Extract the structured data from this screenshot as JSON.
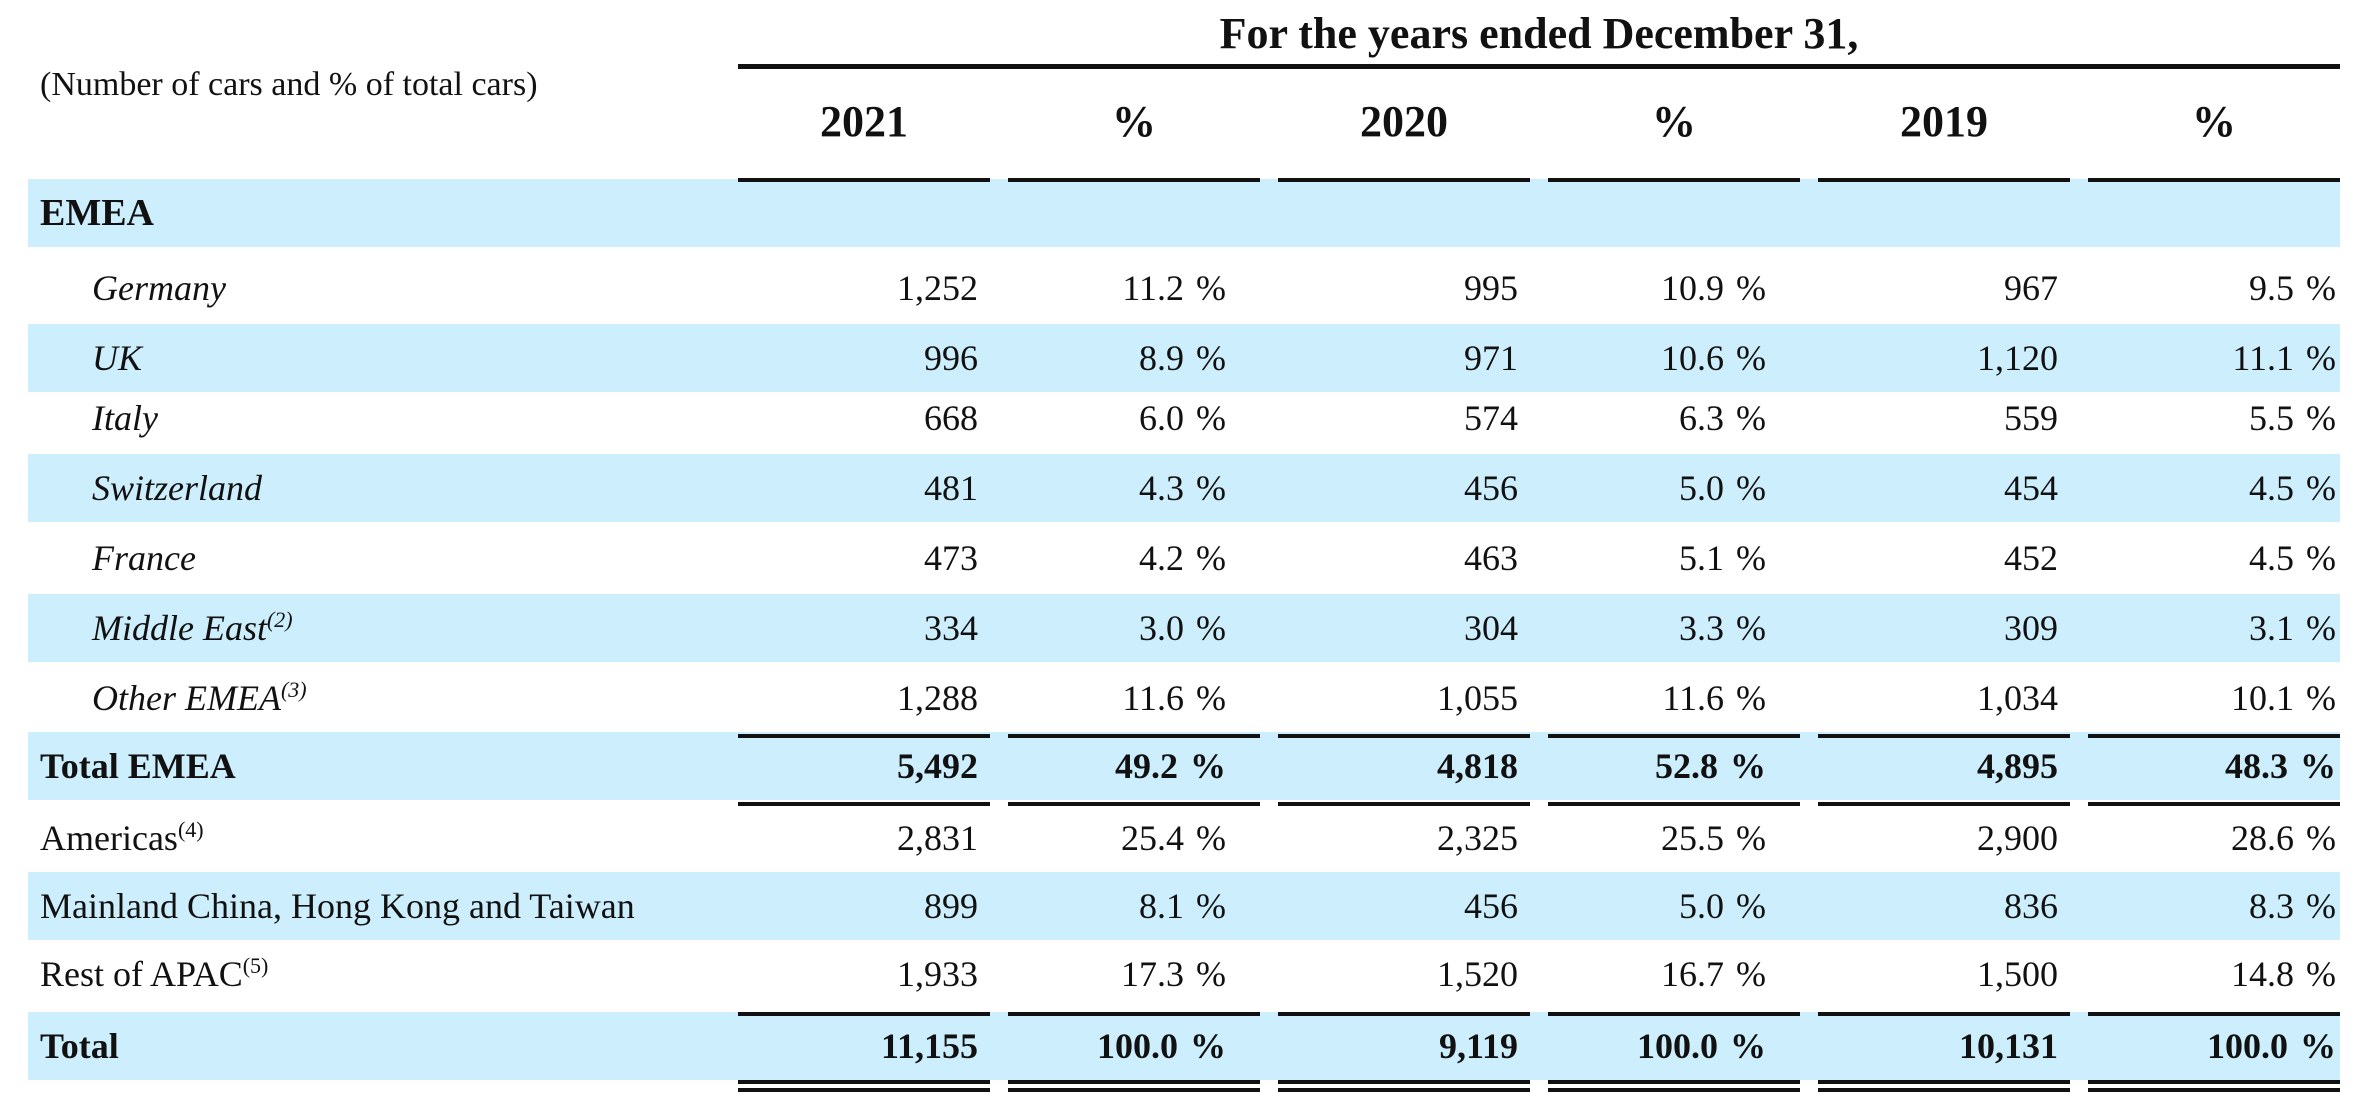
{
  "header": {
    "title": "For the years ended December 31,",
    "unit_note": "(Number of cars and % of total cars)",
    "columns": [
      "2021",
      "%",
      "2020",
      "%",
      "2019",
      "%"
    ]
  },
  "section_label": "EMEA",
  "rows": [
    {
      "label": "Germany",
      "footnote": "",
      "values": [
        "1,252",
        "11.2",
        "995",
        "10.9",
        "967",
        "9.5"
      ]
    },
    {
      "label": "UK",
      "footnote": "",
      "values": [
        "996",
        "8.9",
        "971",
        "10.6",
        "1,120",
        "11.1"
      ]
    },
    {
      "label": "Italy",
      "footnote": "",
      "values": [
        "668",
        "6.0",
        "574",
        "6.3",
        "559",
        "5.5"
      ]
    },
    {
      "label": "Switzerland",
      "footnote": "",
      "values": [
        "481",
        "4.3",
        "456",
        "5.0",
        "454",
        "4.5"
      ]
    },
    {
      "label": "France",
      "footnote": "",
      "values": [
        "473",
        "4.2",
        "463",
        "5.1",
        "452",
        "4.5"
      ]
    },
    {
      "label": "Middle East",
      "footnote": "(2)",
      "values": [
        "334",
        "3.0",
        "304",
        "3.3",
        "309",
        "3.1"
      ]
    },
    {
      "label": "Other EMEA",
      "footnote": "(3)",
      "values": [
        "1,288",
        "11.6",
        "1,055",
        "11.6",
        "1,034",
        "10.1"
      ]
    },
    {
      "label": "Total EMEA",
      "footnote": "",
      "values": [
        "5,492",
        "49.2",
        "4,818",
        "52.8",
        "4,895",
        "48.3"
      ]
    },
    {
      "label": "Americas",
      "footnote": "(4)",
      "values": [
        "2,831",
        "25.4",
        "2,325",
        "25.5",
        "2,900",
        "28.6"
      ]
    },
    {
      "label": "Mainland China, Hong Kong and Taiwan",
      "footnote": "",
      "values": [
        "899",
        "8.1",
        "456",
        "5.0",
        "836",
        "8.3"
      ]
    },
    {
      "label": "Rest of APAC",
      "footnote": "(5)",
      "values": [
        "1,933",
        "17.3",
        "1,520",
        "16.7",
        "1,500",
        "14.8"
      ]
    },
    {
      "label": "Total",
      "footnote": "",
      "values": [
        "11,155",
        "100.0",
        "9,119",
        "100.0",
        "10,131",
        "100.0"
      ]
    }
  ],
  "percent_sign": "%"
}
